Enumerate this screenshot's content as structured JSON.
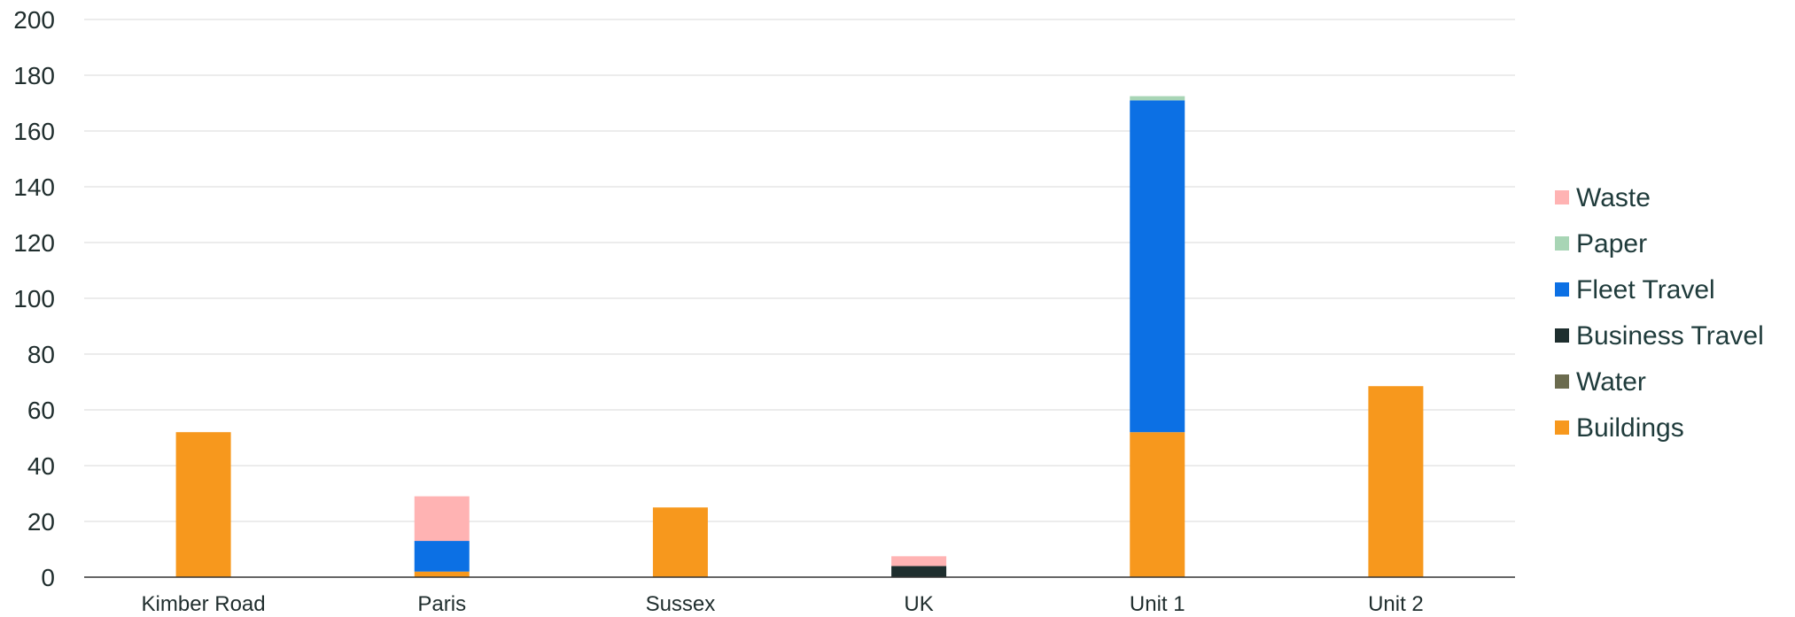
{
  "chart_data": {
    "type": "bar",
    "stacked": true,
    "title": "",
    "xlabel": "",
    "ylabel": "",
    "ylim": [
      0,
      200
    ],
    "yticks": [
      0,
      20,
      40,
      60,
      80,
      100,
      120,
      140,
      160,
      180,
      200
    ],
    "grid": true,
    "legend_position": "right",
    "categories": [
      "Kimber Road",
      "Paris",
      "Sussex",
      "UK",
      "Unit 1",
      "Unit 2"
    ],
    "series": [
      {
        "name": "Buildings",
        "color": "#F7981D",
        "values": [
          52,
          2,
          25,
          0,
          52,
          68.5
        ]
      },
      {
        "name": "Water",
        "color": "#6B6B4E",
        "values": [
          0,
          0,
          0,
          0,
          0,
          0
        ]
      },
      {
        "name": "Business Travel",
        "color": "#1E2E2E",
        "values": [
          0,
          0,
          0,
          4,
          0,
          0
        ]
      },
      {
        "name": "Fleet Travel",
        "color": "#0C70E4",
        "values": [
          0,
          11,
          0,
          0,
          119,
          0
        ]
      },
      {
        "name": "Paper",
        "color": "#A8D5B5",
        "values": [
          0,
          0,
          0,
          0,
          1.5,
          0
        ]
      },
      {
        "name": "Waste",
        "color": "#FFB3B3",
        "values": [
          0,
          16,
          0,
          3.5,
          0,
          0
        ]
      }
    ],
    "legend_order": [
      "Waste",
      "Paper",
      "Fleet Travel",
      "Business Travel",
      "Water",
      "Buildings"
    ]
  }
}
